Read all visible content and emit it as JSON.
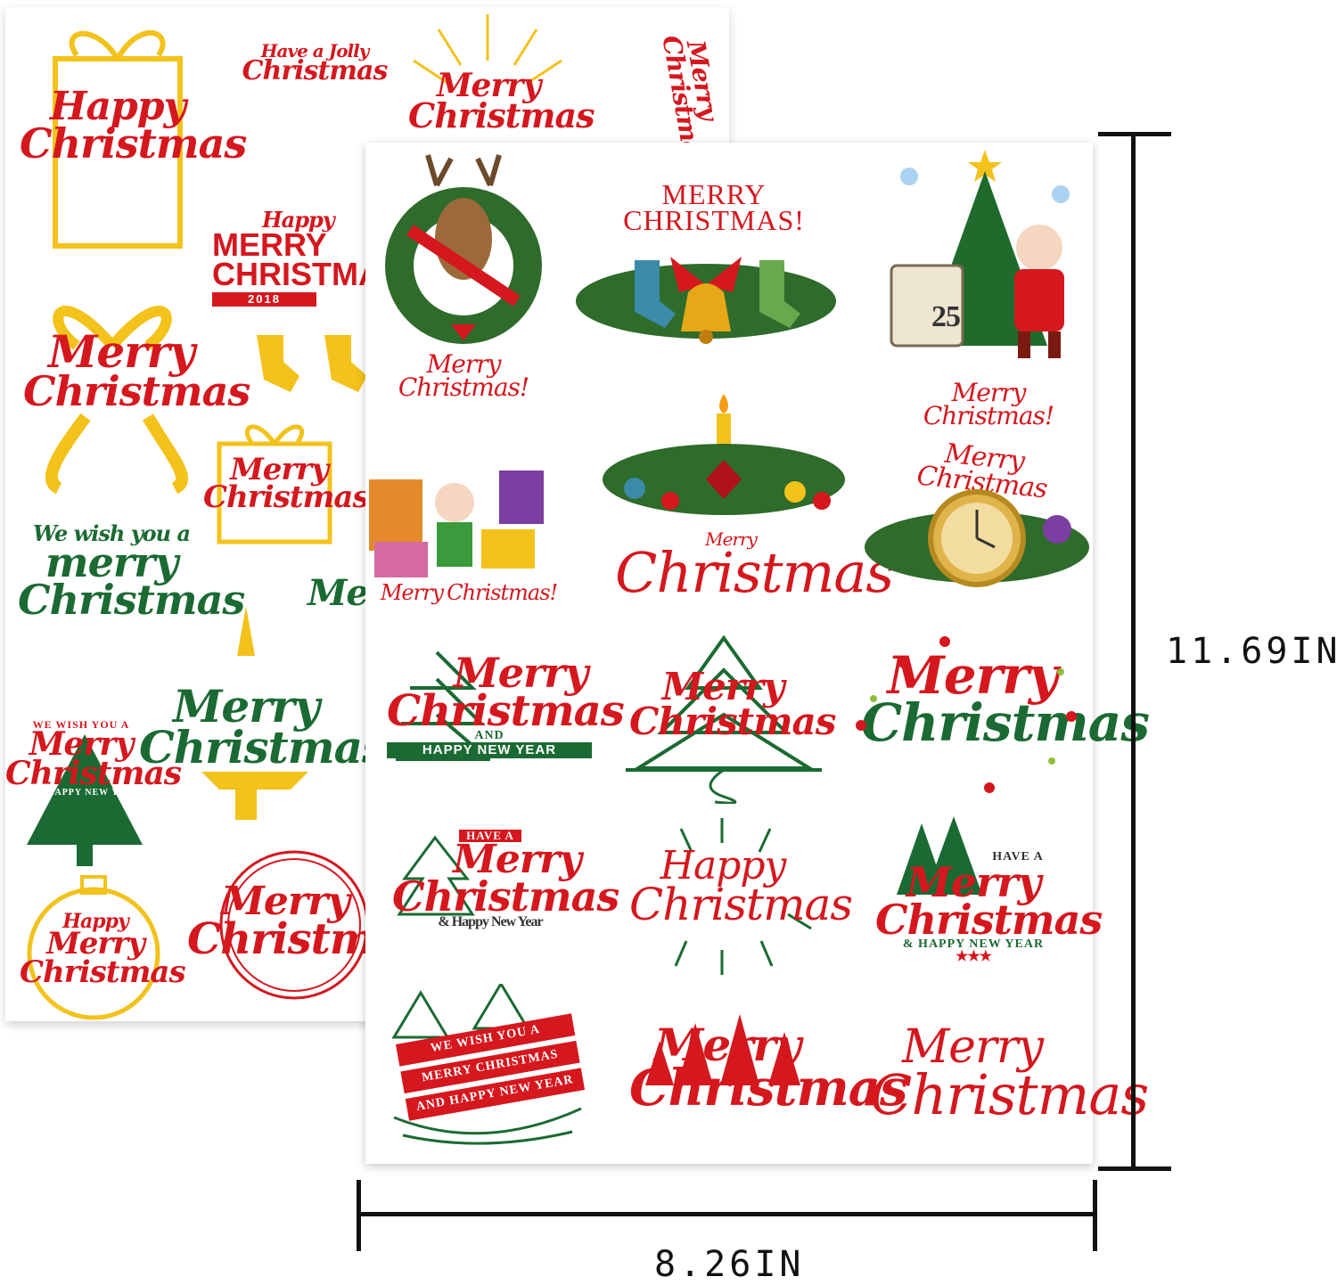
{
  "dimensions": {
    "height_label": "11.69IN",
    "width_label": "8.26IN"
  },
  "colors": {
    "red": "#d5171e",
    "green": "#1b6a33",
    "gold": "#f3c21b"
  },
  "back_sheet": {
    "decals": [
      {
        "l1": "Happy",
        "l2": "Christmas"
      },
      {
        "l1": "Have a Jolly",
        "l2": "Christmas"
      },
      {
        "l1": "Merry",
        "l2": "Christmas"
      },
      {
        "l1": "Merry",
        "l2": "Christmas"
      },
      {
        "l1": "Happy",
        "l2": "MERRY CHRISTMAS",
        "l3": "2018"
      },
      {
        "l1": "Merry",
        "l2": "Christmas"
      },
      {
        "l1": "Merry",
        "l2": "Christmas"
      },
      {
        "l1": "We wish you a",
        "l2": "merry Christmas"
      },
      {
        "l1": "Merry",
        "l2": "Christmas"
      },
      {
        "l1": "WE WISH YOU A",
        "l2": "Merry Christmas",
        "l3": "AND HAPPY NEW YEAR"
      },
      {
        "l1": "Happy",
        "l2": "Merry Christmas"
      },
      {
        "l1": "Merry",
        "l2": "Christmas"
      }
    ]
  },
  "front_sheet": {
    "decals": [
      {
        "l1": "Merry",
        "l2": "Christmas!"
      },
      {
        "l1": "MERRY",
        "l2": "CHRISTMAS!"
      },
      {
        "l1": "Merry",
        "l2": "Christmas!"
      },
      {
        "l1": "Merry",
        "l2": "Christmas!"
      },
      {
        "l1": "Merry",
        "l2": "Christmas"
      },
      {
        "l1": "Merry",
        "l2": "Christmas"
      },
      {
        "l1": "Merry",
        "l2": "Christmas",
        "l3": "AND",
        "l4": "HAPPY NEW YEAR"
      },
      {
        "l1": "Merry",
        "l2": "Christmas"
      },
      {
        "l1": "Merry",
        "l2": "Christmas"
      },
      {
        "l1": "HAVE A",
        "l2": "Merry",
        "l3": "Christmas",
        "l4": "& Happy New Year"
      },
      {
        "l1": "Happy",
        "l2": "Christmas"
      },
      {
        "l1": "HAVE A",
        "l2": "Merry",
        "l3": "Christmas",
        "l4": "& HAPPY NEW YEAR"
      },
      {
        "l1": "WE WISH YOU A",
        "l2": "MERRY CHRISTMAS",
        "l3": "AND HAPPY NEW YEAR"
      },
      {
        "l1": "Merry",
        "l2": "Christmas"
      },
      {
        "l1": "Merry",
        "l2": "Christmas"
      }
    ],
    "calendar_number": "25"
  }
}
